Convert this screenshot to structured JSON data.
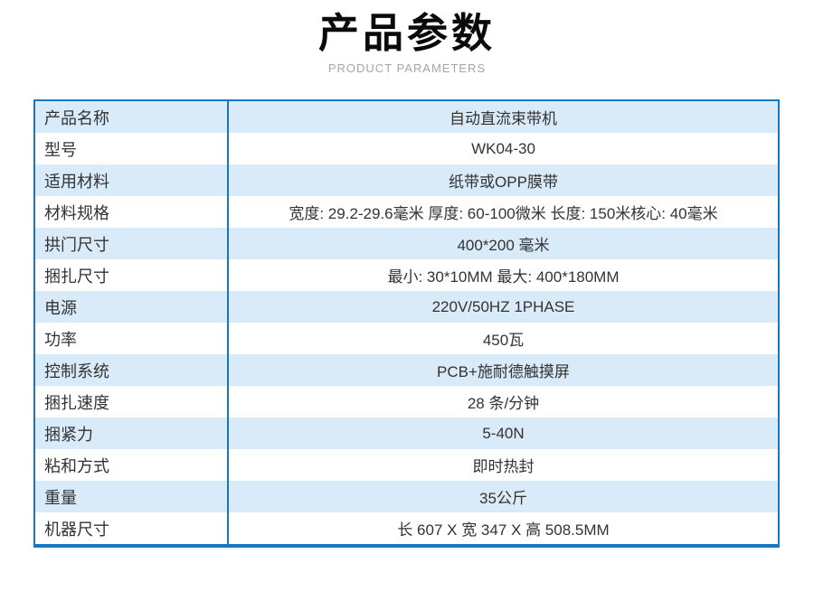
{
  "header": {
    "title": "产品参数",
    "subtitle": "PRODUCT PARAMETERS"
  },
  "table": {
    "rows": [
      {
        "label": "产品名称",
        "value": "自动直流束带机"
      },
      {
        "label": "型号",
        "value": "WK04-30"
      },
      {
        "label": "适用材料",
        "value": "纸带或OPP膜带"
      },
      {
        "label": "材料规格",
        "value": "宽度: 29.2-29.6毫米 厚度: 60-100微米 长度: 150米核心: 40毫米"
      },
      {
        "label": "拱门尺寸",
        "value": "400*200 毫米"
      },
      {
        "label": "捆扎尺寸",
        "value": "最小: 30*10MM 最大: 400*180MM"
      },
      {
        "label": "电源",
        "value": "220V/50HZ  1PHASE"
      },
      {
        "label": "功率",
        "value": "450瓦"
      },
      {
        "label": "控制系统",
        "value": "PCB+施耐德触摸屏"
      },
      {
        "label": "捆扎速度",
        "value": "28 条/分钟"
      },
      {
        "label": "捆紧力",
        "value": "5-40N"
      },
      {
        "label": "粘和方式",
        "value": "即时热封"
      },
      {
        "label": "重量",
        "value": "35公斤"
      },
      {
        "label": "机器尺寸",
        "value": "长 607 X 宽 347 X 高 508.5MM"
      }
    ]
  },
  "colors": {
    "border_blue": "#1778c2",
    "row_alt_blue": "#d9eaf8",
    "title_black": "#0a0a0a",
    "subtitle_gray": "#a5a5a5",
    "text_dark": "#333333"
  }
}
